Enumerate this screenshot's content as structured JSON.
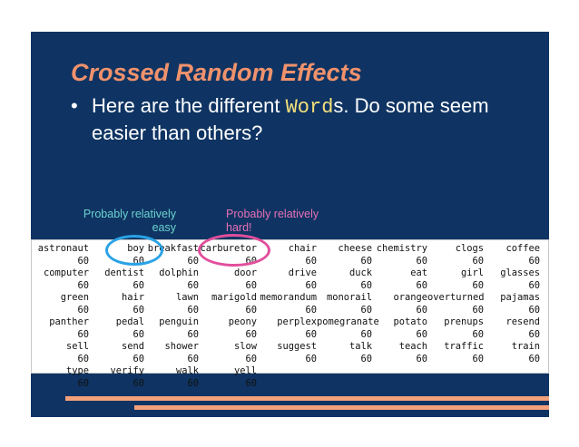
{
  "slide": {
    "title": "Crossed Random Effects",
    "bullet": {
      "marker": "•",
      "before": "Here are the different ",
      "code": "Word",
      "after": "s.  Do some seem easier than others?"
    },
    "annotations": {
      "easy": {
        "line1": "Probably relatively",
        "line2": "easy",
        "color": "#6cd2ce"
      },
      "hard": {
        "line1": "Probably relatively",
        "line2": "hard!",
        "color": "#e76fb5"
      }
    },
    "colors": {
      "background": "#0f3463",
      "title": "#f0926c",
      "code": "#f5e07a",
      "easy_circle": "#2aa2e6",
      "hard_circle": "#e24e9c",
      "accent_bars": "#f4a07a"
    }
  },
  "table": {
    "rows": [
      [
        "astronaut",
        "boy",
        "breakfast",
        "carburetor",
        "chair",
        "cheese",
        "chemistry",
        "clogs",
        "coffee"
      ],
      [
        "60",
        "60",
        "60",
        "60",
        "60",
        "60",
        "60",
        "60",
        "60"
      ],
      [
        "computer",
        "dentist",
        "dolphin",
        "door",
        "drive",
        "duck",
        "eat",
        "girl",
        "glasses"
      ],
      [
        "60",
        "60",
        "60",
        "60",
        "60",
        "60",
        "60",
        "60",
        "60"
      ],
      [
        "green",
        "hair",
        "lawn",
        "marigold",
        "memorandum",
        "monorail",
        "orange",
        "overturned",
        "pajamas"
      ],
      [
        "60",
        "60",
        "60",
        "60",
        "60",
        "60",
        "60",
        "60",
        "60"
      ],
      [
        "panther",
        "pedal",
        "penguin",
        "peony",
        "perplex",
        "pomegranate",
        "potato",
        "prenups",
        "resend"
      ],
      [
        "60",
        "60",
        "60",
        "60",
        "60",
        "60",
        "60",
        "60",
        "60"
      ],
      [
        "sell",
        "send",
        "shower",
        "slow",
        "suggest",
        "talk",
        "teach",
        "traffic",
        "train"
      ],
      [
        "60",
        "60",
        "60",
        "60",
        "60",
        "60",
        "60",
        "60",
        "60"
      ],
      [
        "type",
        "verify",
        "walk",
        "yell",
        "",
        "",
        "",
        "",
        ""
      ],
      [
        "60",
        "60",
        "60",
        "60",
        "",
        "",
        "",
        "",
        ""
      ]
    ]
  }
}
